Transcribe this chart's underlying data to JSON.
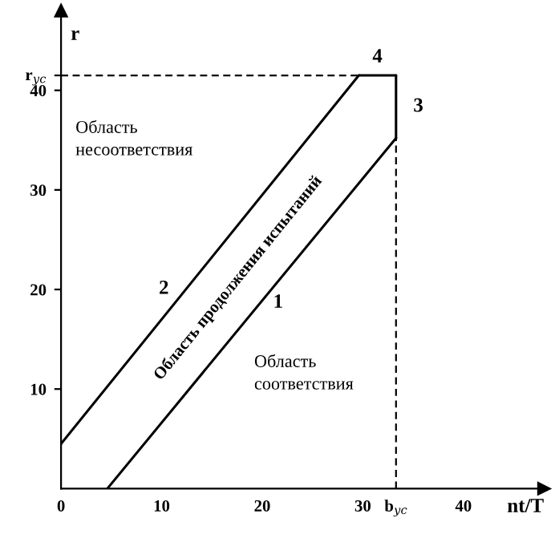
{
  "chart_data": {
    "type": "line",
    "xlabel": "nt/T",
    "ylabel": "r",
    "xlim": [
      0,
      48
    ],
    "ylim": [
      0,
      48
    ],
    "xticks": [
      0,
      10,
      20,
      30,
      {
        "value": 33.3,
        "label": "b$_{ус}$"
      },
      40
    ],
    "yticks": [
      10,
      20,
      30,
      40,
      {
        "value": 41.5,
        "label": "r$_{ус}$"
      }
    ],
    "grid": false,
    "legend": false,
    "marker": "none",
    "tick_labels": true,
    "series": [
      {
        "name": "1",
        "color": "#000000",
        "x": [
          4.6,
          33.3
        ],
        "values": [
          0,
          35.2
        ],
        "line_style": "solid"
      },
      {
        "name": "2",
        "color": "#000000",
        "x": [
          0,
          29.6
        ],
        "values": [
          4.5,
          41.5
        ],
        "line_style": "solid"
      },
      {
        "name": "3",
        "color": "#000000",
        "x": [
          33.3,
          33.3
        ],
        "values": [
          35.2,
          41.5
        ],
        "line_style": "solid"
      },
      {
        "name": "4",
        "color": "#000000",
        "x": [
          29.6,
          33.3
        ],
        "values": [
          41.5,
          41.5
        ],
        "line_style": "solid"
      },
      {
        "color": "#000000",
        "x": [
          0,
          29.6
        ],
        "values": [
          41.5,
          41.5
        ],
        "line_style": "dashed"
      },
      {
        "color": "#000000",
        "x": [
          33.3,
          33.3
        ],
        "values": [
          0,
          35.2
        ],
        "line_style": "dashed"
      }
    ],
    "annotations": [
      "Область\nнесоответствия",
      "Область\nсоответствия",
      "Область продолжения испытаний"
    ]
  }
}
